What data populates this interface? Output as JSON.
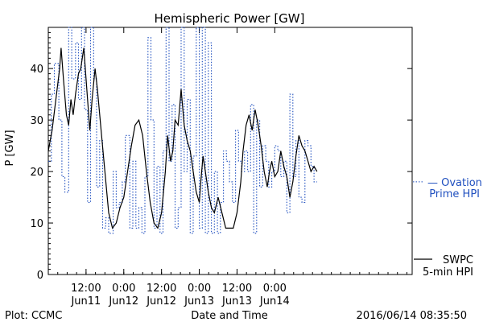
{
  "chart_data": {
    "type": "line",
    "title": "Hemispheric Power [GW]",
    "ylabel": "P [GW]",
    "xlabel": "Date and Time",
    "ylim": [
      0,
      48
    ],
    "xlim": [
      0,
      4.82
    ],
    "y_ticks": [
      0,
      10,
      20,
      30,
      40
    ],
    "x_ticks": [
      {
        "pos": 0.5,
        "time": "12:00",
        "date": "Jun11"
      },
      {
        "pos": 1.0,
        "time": "0:00",
        "date": "Jun12"
      },
      {
        "pos": 1.5,
        "time": "12:00",
        "date": "Jun12"
      },
      {
        "pos": 2.0,
        "time": "0:00",
        "date": "Jun13"
      },
      {
        "pos": 2.5,
        "time": "12:00",
        "date": "Jun13"
      },
      {
        "pos": 3.0,
        "time": "0:00",
        "date": "Jun14"
      }
    ],
    "grid": false,
    "series": [
      {
        "name_lines": [
          "SWPC",
          "5-min HPI"
        ],
        "color": "#000000",
        "style": "solid",
        "points": [
          [
            0,
            24
          ],
          [
            0.05,
            28
          ],
          [
            0.1,
            34
          ],
          [
            0.15,
            40
          ],
          [
            0.17,
            44
          ],
          [
            0.2,
            38
          ],
          [
            0.24,
            31
          ],
          [
            0.27,
            29
          ],
          [
            0.3,
            34
          ],
          [
            0.33,
            31
          ],
          [
            0.36,
            35
          ],
          [
            0.4,
            39
          ],
          [
            0.43,
            40
          ],
          [
            0.47,
            44
          ],
          [
            0.5,
            38
          ],
          [
            0.55,
            28
          ],
          [
            0.58,
            34
          ],
          [
            0.62,
            40
          ],
          [
            0.65,
            36
          ],
          [
            0.7,
            28
          ],
          [
            0.75,
            20
          ],
          [
            0.8,
            12
          ],
          [
            0.85,
            9
          ],
          [
            0.9,
            10
          ],
          [
            0.95,
            13
          ],
          [
            1.0,
            15
          ],
          [
            1.05,
            20
          ],
          [
            1.1,
            25
          ],
          [
            1.15,
            29
          ],
          [
            1.2,
            30
          ],
          [
            1.25,
            27
          ],
          [
            1.3,
            20
          ],
          [
            1.35,
            14
          ],
          [
            1.4,
            10
          ],
          [
            1.45,
            9
          ],
          [
            1.5,
            12
          ],
          [
            1.55,
            20
          ],
          [
            1.58,
            27
          ],
          [
            1.62,
            22
          ],
          [
            1.65,
            24
          ],
          [
            1.68,
            30
          ],
          [
            1.72,
            29
          ],
          [
            1.76,
            36
          ],
          [
            1.8,
            29
          ],
          [
            1.84,
            26
          ],
          [
            1.88,
            24
          ],
          [
            1.92,
            20
          ],
          [
            1.96,
            16
          ],
          [
            2.0,
            14
          ],
          [
            2.02,
            18
          ],
          [
            2.05,
            23
          ],
          [
            2.08,
            20
          ],
          [
            2.12,
            16
          ],
          [
            2.16,
            13
          ],
          [
            2.2,
            12
          ],
          [
            2.25,
            15
          ],
          [
            2.3,
            12
          ],
          [
            2.35,
            9
          ],
          [
            2.4,
            9
          ],
          [
            2.45,
            9
          ],
          [
            2.5,
            12
          ],
          [
            2.55,
            18
          ],
          [
            2.58,
            24
          ],
          [
            2.62,
            29
          ],
          [
            2.66,
            31
          ],
          [
            2.7,
            28
          ],
          [
            2.74,
            32
          ],
          [
            2.78,
            29
          ],
          [
            2.82,
            25
          ],
          [
            2.86,
            20
          ],
          [
            2.9,
            17
          ],
          [
            2.93,
            20
          ],
          [
            2.96,
            22
          ],
          [
            3.0,
            19
          ],
          [
            3.04,
            20
          ],
          [
            3.08,
            24
          ],
          [
            3.12,
            21
          ],
          [
            3.16,
            19
          ],
          [
            3.2,
            15
          ],
          [
            3.24,
            18
          ],
          [
            3.28,
            23
          ],
          [
            3.32,
            27
          ],
          [
            3.36,
            25
          ],
          [
            3.4,
            24
          ],
          [
            3.44,
            22
          ],
          [
            3.48,
            20
          ],
          [
            3.52,
            21
          ],
          [
            3.56,
            20
          ]
        ]
      },
      {
        "name_lines": [
          "Ovation",
          "Prime HPI"
        ],
        "color": "#1f4fbf",
        "style": "dotted",
        "points": [
          [
            0,
            22
          ],
          [
            0.04,
            22
          ],
          [
            0.04,
            35
          ],
          [
            0.08,
            35
          ],
          [
            0.08,
            41
          ],
          [
            0.14,
            41
          ],
          [
            0.14,
            30
          ],
          [
            0.18,
            30
          ],
          [
            0.18,
            19
          ],
          [
            0.22,
            19
          ],
          [
            0.22,
            16
          ],
          [
            0.27,
            16
          ],
          [
            0.27,
            48
          ],
          [
            0.31,
            48
          ],
          [
            0.31,
            38
          ],
          [
            0.36,
            38
          ],
          [
            0.36,
            45
          ],
          [
            0.4,
            45
          ],
          [
            0.4,
            34
          ],
          [
            0.44,
            34
          ],
          [
            0.44,
            48
          ],
          [
            0.48,
            48
          ],
          [
            0.48,
            32
          ],
          [
            0.52,
            32
          ],
          [
            0.52,
            14
          ],
          [
            0.56,
            14
          ],
          [
            0.56,
            48
          ],
          [
            0.6,
            48
          ],
          [
            0.6,
            38
          ],
          [
            0.64,
            38
          ],
          [
            0.64,
            17
          ],
          [
            0.68,
            17
          ],
          [
            0.68,
            26
          ],
          [
            0.72,
            26
          ],
          [
            0.72,
            9
          ],
          [
            0.76,
            9
          ],
          [
            0.76,
            11
          ],
          [
            0.8,
            11
          ],
          [
            0.8,
            8
          ],
          [
            0.86,
            8
          ],
          [
            0.86,
            20
          ],
          [
            0.9,
            20
          ],
          [
            0.9,
            13
          ],
          [
            0.94,
            13
          ],
          [
            0.94,
            14
          ],
          [
            0.98,
            14
          ],
          [
            0.98,
            18
          ],
          [
            1.02,
            18
          ],
          [
            1.02,
            27
          ],
          [
            1.08,
            27
          ],
          [
            1.08,
            9
          ],
          [
            1.12,
            9
          ],
          [
            1.12,
            22
          ],
          [
            1.16,
            22
          ],
          [
            1.16,
            9
          ],
          [
            1.2,
            9
          ],
          [
            1.2,
            13
          ],
          [
            1.24,
            13
          ],
          [
            1.24,
            8
          ],
          [
            1.28,
            8
          ],
          [
            1.28,
            19
          ],
          [
            1.32,
            19
          ],
          [
            1.32,
            46
          ],
          [
            1.36,
            46
          ],
          [
            1.36,
            30
          ],
          [
            1.4,
            30
          ],
          [
            1.4,
            9
          ],
          [
            1.44,
            9
          ],
          [
            1.44,
            21
          ],
          [
            1.48,
            21
          ],
          [
            1.48,
            8
          ],
          [
            1.52,
            8
          ],
          [
            1.52,
            24
          ],
          [
            1.56,
            24
          ],
          [
            1.56,
            48
          ],
          [
            1.6,
            48
          ],
          [
            1.6,
            22
          ],
          [
            1.64,
            22
          ],
          [
            1.64,
            33
          ],
          [
            1.68,
            33
          ],
          [
            1.68,
            9
          ],
          [
            1.72,
            9
          ],
          [
            1.72,
            13
          ],
          [
            1.76,
            13
          ],
          [
            1.76,
            48
          ],
          [
            1.8,
            48
          ],
          [
            1.8,
            20
          ],
          [
            1.84,
            20
          ],
          [
            1.84,
            34
          ],
          [
            1.88,
            34
          ],
          [
            1.88,
            8
          ],
          [
            1.92,
            8
          ],
          [
            1.92,
            23
          ],
          [
            1.96,
            23
          ],
          [
            1.96,
            48
          ],
          [
            2.0,
            48
          ],
          [
            2.0,
            9
          ],
          [
            2.04,
            9
          ],
          [
            2.04,
            48
          ],
          [
            2.08,
            48
          ],
          [
            2.08,
            8
          ],
          [
            2.12,
            8
          ],
          [
            2.12,
            45
          ],
          [
            2.16,
            45
          ],
          [
            2.16,
            8
          ],
          [
            2.2,
            8
          ],
          [
            2.2,
            20
          ],
          [
            2.24,
            20
          ],
          [
            2.24,
            8
          ],
          [
            2.28,
            8
          ],
          [
            2.28,
            14
          ],
          [
            2.32,
            14
          ],
          [
            2.32,
            24
          ],
          [
            2.36,
            24
          ],
          [
            2.36,
            22
          ],
          [
            2.4,
            22
          ],
          [
            2.4,
            18
          ],
          [
            2.44,
            18
          ],
          [
            2.44,
            14
          ],
          [
            2.48,
            14
          ],
          [
            2.48,
            28
          ],
          [
            2.52,
            28
          ],
          [
            2.52,
            22
          ],
          [
            2.56,
            22
          ],
          [
            2.56,
            20
          ],
          [
            2.6,
            20
          ],
          [
            2.6,
            24
          ],
          [
            2.64,
            24
          ],
          [
            2.64,
            20
          ],
          [
            2.68,
            20
          ],
          [
            2.68,
            33
          ],
          [
            2.72,
            33
          ],
          [
            2.72,
            8
          ],
          [
            2.76,
            8
          ],
          [
            2.76,
            30
          ],
          [
            2.8,
            30
          ],
          [
            2.8,
            17
          ],
          [
            2.84,
            17
          ],
          [
            2.84,
            25
          ],
          [
            2.88,
            25
          ],
          [
            2.88,
            22
          ],
          [
            2.92,
            22
          ],
          [
            2.92,
            17
          ],
          [
            2.96,
            17
          ],
          [
            2.96,
            20
          ],
          [
            3.0,
            20
          ],
          [
            3.0,
            25
          ],
          [
            3.04,
            25
          ],
          [
            3.04,
            24
          ],
          [
            3.08,
            24
          ],
          [
            3.08,
            19
          ],
          [
            3.12,
            19
          ],
          [
            3.12,
            22
          ],
          [
            3.16,
            22
          ],
          [
            3.16,
            12
          ],
          [
            3.2,
            12
          ],
          [
            3.2,
            35
          ],
          [
            3.24,
            35
          ],
          [
            3.24,
            19
          ],
          [
            3.28,
            19
          ],
          [
            3.28,
            26
          ],
          [
            3.32,
            26
          ],
          [
            3.32,
            15
          ],
          [
            3.36,
            15
          ],
          [
            3.36,
            14
          ],
          [
            3.4,
            14
          ],
          [
            3.4,
            26
          ],
          [
            3.44,
            26
          ],
          [
            3.44,
            25
          ],
          [
            3.48,
            25
          ],
          [
            3.48,
            21
          ],
          [
            3.52,
            21
          ],
          [
            3.52,
            18
          ],
          [
            3.56,
            18
          ]
        ]
      }
    ]
  },
  "footer": {
    "left": "Plot: CCMC",
    "right": "2016/06/14 08:35:50"
  }
}
